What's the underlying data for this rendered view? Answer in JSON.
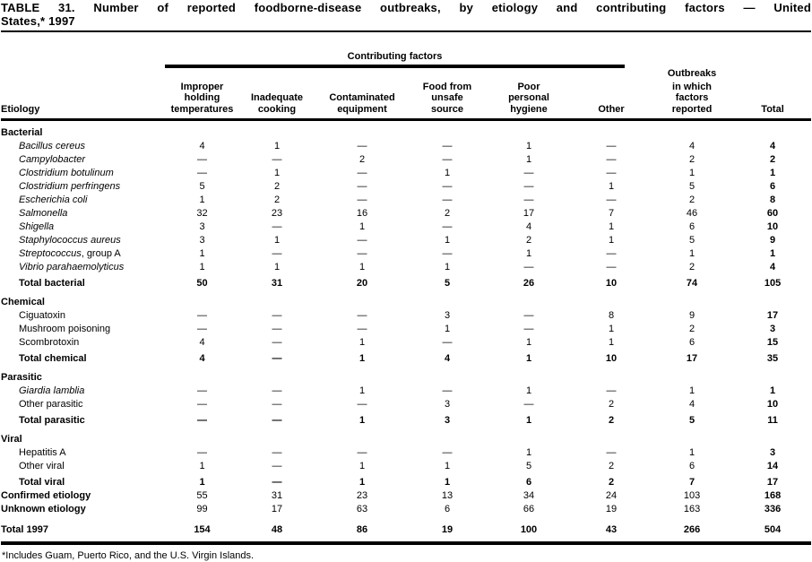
{
  "title": {
    "line1": "TABLE 31. Number of reported foodborne-disease outbreaks, by etiology and contributing factors — United",
    "line2": "States,* 1997"
  },
  "table": {
    "group_header": "Contributing factors",
    "outbreaks_header_top": "Outbreaks",
    "col_headers": {
      "etiology": "Etiology",
      "factors": [
        "Improper\nholding\ntemperatures",
        "Inadequate\ncooking",
        "Contaminated\nequipment",
        "Food from\nunsafe\nsource",
        "Poor\npersonal\nhygiene",
        "Other"
      ],
      "outbreaks_rest": "in which\nfactors\nreported",
      "total": "Total"
    },
    "rows": [
      {
        "label": "Bacterial",
        "style": "section",
        "italic": false,
        "values": []
      },
      {
        "label": "Bacillus cereus",
        "style": "species",
        "italic": true,
        "values": [
          "4",
          "1",
          "—",
          "—",
          "1",
          "—",
          "4",
          "4"
        ]
      },
      {
        "label": "Campylobacter",
        "style": "species",
        "italic": true,
        "values": [
          "—",
          "—",
          "2",
          "—",
          "1",
          "—",
          "2",
          "2"
        ]
      },
      {
        "label": "Clostridium botulinum",
        "style": "species",
        "italic": true,
        "values": [
          "—",
          "1",
          "—",
          "1",
          "—",
          "—",
          "1",
          "1"
        ]
      },
      {
        "label": "Clostridium perfringens",
        "style": "species",
        "italic": true,
        "values": [
          "5",
          "2",
          "—",
          "—",
          "—",
          "1",
          "5",
          "6"
        ]
      },
      {
        "label": "Escherichia coli",
        "style": "species",
        "italic": true,
        "values": [
          "1",
          "2",
          "—",
          "—",
          "—",
          "—",
          "2",
          "8"
        ]
      },
      {
        "label": "Salmonella",
        "style": "species",
        "italic": true,
        "values": [
          "32",
          "23",
          "16",
          "2",
          "17",
          "7",
          "46",
          "60"
        ]
      },
      {
        "label": "Shigella",
        "style": "species",
        "italic": true,
        "values": [
          "3",
          "—",
          "1",
          "—",
          "4",
          "1",
          "6",
          "10"
        ]
      },
      {
        "label": "Staphylococcus aureus",
        "style": "species",
        "italic": true,
        "values": [
          "3",
          "1",
          "—",
          "1",
          "2",
          "1",
          "5",
          "9"
        ]
      },
      {
        "label": "Streptococcus",
        "label2": ", group A",
        "style": "species",
        "italic": true,
        "values": [
          "1",
          "—",
          "—",
          "—",
          "1",
          "—",
          "1",
          "1"
        ]
      },
      {
        "label": "Vibrio parahaemolyticus",
        "style": "species",
        "italic": true,
        "values": [
          "1",
          "1",
          "1",
          "1",
          "—",
          "—",
          "2",
          "4"
        ]
      },
      {
        "label": "Total bacterial",
        "style": "subtotal",
        "italic": false,
        "values": [
          "50",
          "31",
          "20",
          "5",
          "26",
          "10",
          "74",
          "105"
        ]
      },
      {
        "label": "Chemical",
        "style": "section",
        "italic": false,
        "values": []
      },
      {
        "label": "Ciguatoxin",
        "style": "item",
        "italic": false,
        "values": [
          "—",
          "—",
          "—",
          "3",
          "—",
          "8",
          "9",
          "17"
        ]
      },
      {
        "label": "Mushroom poisoning",
        "style": "item",
        "italic": false,
        "values": [
          "—",
          "—",
          "—",
          "1",
          "—",
          "1",
          "2",
          "3"
        ]
      },
      {
        "label": "Scombrotoxin",
        "style": "item",
        "italic": false,
        "values": [
          "4",
          "—",
          "1",
          "—",
          "1",
          "1",
          "6",
          "15"
        ]
      },
      {
        "label": "Total chemical",
        "style": "subtotal",
        "italic": false,
        "values": [
          "4",
          "—",
          "1",
          "4",
          "1",
          "10",
          "17",
          "35"
        ]
      },
      {
        "label": "Parasitic",
        "style": "section",
        "italic": false,
        "values": []
      },
      {
        "label": "Giardia lamblia",
        "style": "species",
        "italic": true,
        "values": [
          "—",
          "—",
          "1",
          "—",
          "1",
          "—",
          "1",
          "1"
        ]
      },
      {
        "label": "Other parasitic",
        "style": "item",
        "italic": false,
        "values": [
          "—",
          "—",
          "—",
          "3",
          "—",
          "2",
          "4",
          "10"
        ]
      },
      {
        "label": "Total parasitic",
        "style": "subtotal",
        "italic": false,
        "values": [
          "—",
          "—",
          "1",
          "3",
          "1",
          "2",
          "5",
          "11"
        ]
      },
      {
        "label": "Viral",
        "style": "section",
        "italic": false,
        "values": []
      },
      {
        "label": "Hepatitis A",
        "style": "item",
        "italic": false,
        "values": [
          "—",
          "—",
          "—",
          "—",
          "1",
          "—",
          "1",
          "3"
        ]
      },
      {
        "label": "Other viral",
        "style": "item",
        "italic": false,
        "values": [
          "1",
          "—",
          "1",
          "1",
          "5",
          "2",
          "6",
          "14"
        ]
      },
      {
        "label": "Total viral",
        "style": "subtotal",
        "italic": false,
        "values": [
          "1",
          "—",
          "1",
          "1",
          "6",
          "2",
          "7",
          "17"
        ]
      },
      {
        "label": "Confirmed etiology",
        "style": "summary",
        "italic": false,
        "values": [
          "55",
          "31",
          "23",
          "13",
          "34",
          "24",
          "103",
          "168"
        ]
      },
      {
        "label": "Unknown etiology",
        "style": "summary",
        "italic": false,
        "values": [
          "99",
          "17",
          "63",
          "6",
          "66",
          "19",
          "163",
          "336"
        ]
      },
      {
        "label": "Total 1997",
        "style": "grand",
        "italic": false,
        "values": [
          "154",
          "48",
          "86",
          "19",
          "100",
          "43",
          "266",
          "504"
        ]
      }
    ]
  },
  "footnote": "*Includes Guam, Puerto Rico, and the U.S. Virgin Islands."
}
